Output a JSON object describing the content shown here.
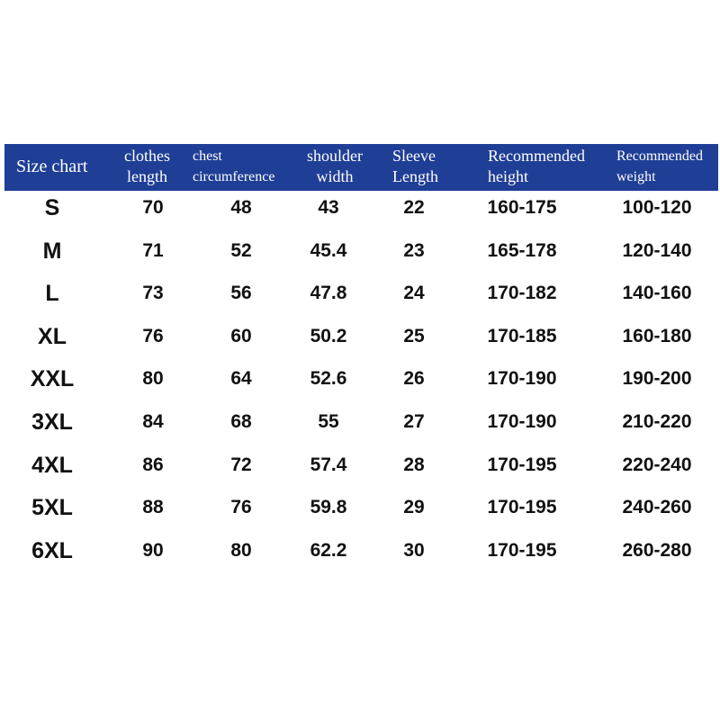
{
  "header": {
    "size": "Size chart",
    "clothes": [
      "clothes",
      "length"
    ],
    "chest": [
      "chest",
      "circumference"
    ],
    "shoulder": [
      "shoulder",
      "width"
    ],
    "sleeve": [
      "Sleeve",
      "Length"
    ],
    "height": [
      "Recommended",
      "height"
    ],
    "weight": [
      "Recommended",
      "weight"
    ]
  },
  "header_color": "#1f3e96",
  "rows": [
    [
      "S",
      "70",
      "48",
      "43",
      "22",
      "160-175",
      "100-120"
    ],
    [
      "M",
      "71",
      "52",
      "45.4",
      "23",
      "165-178",
      "120-140"
    ],
    [
      "L",
      "73",
      "56",
      "47.8",
      "24",
      "170-182",
      "140-160"
    ],
    [
      "XL",
      "76",
      "60",
      "50.2",
      "25",
      "170-185",
      "160-180"
    ],
    [
      "XXL",
      "80",
      "64",
      "52.6",
      "26",
      "170-190",
      "190-200"
    ],
    [
      "3XL",
      "84",
      "68",
      "55",
      "27",
      "170-190",
      "210-220"
    ],
    [
      "4XL",
      "86",
      "72",
      "57.4",
      "28",
      "170-195",
      "220-240"
    ],
    [
      "5XL",
      "88",
      "76",
      "59.8",
      "29",
      "170-195",
      "240-260"
    ],
    [
      "6XL",
      "90",
      "80",
      "62.2",
      "30",
      "170-195",
      "260-280"
    ]
  ]
}
